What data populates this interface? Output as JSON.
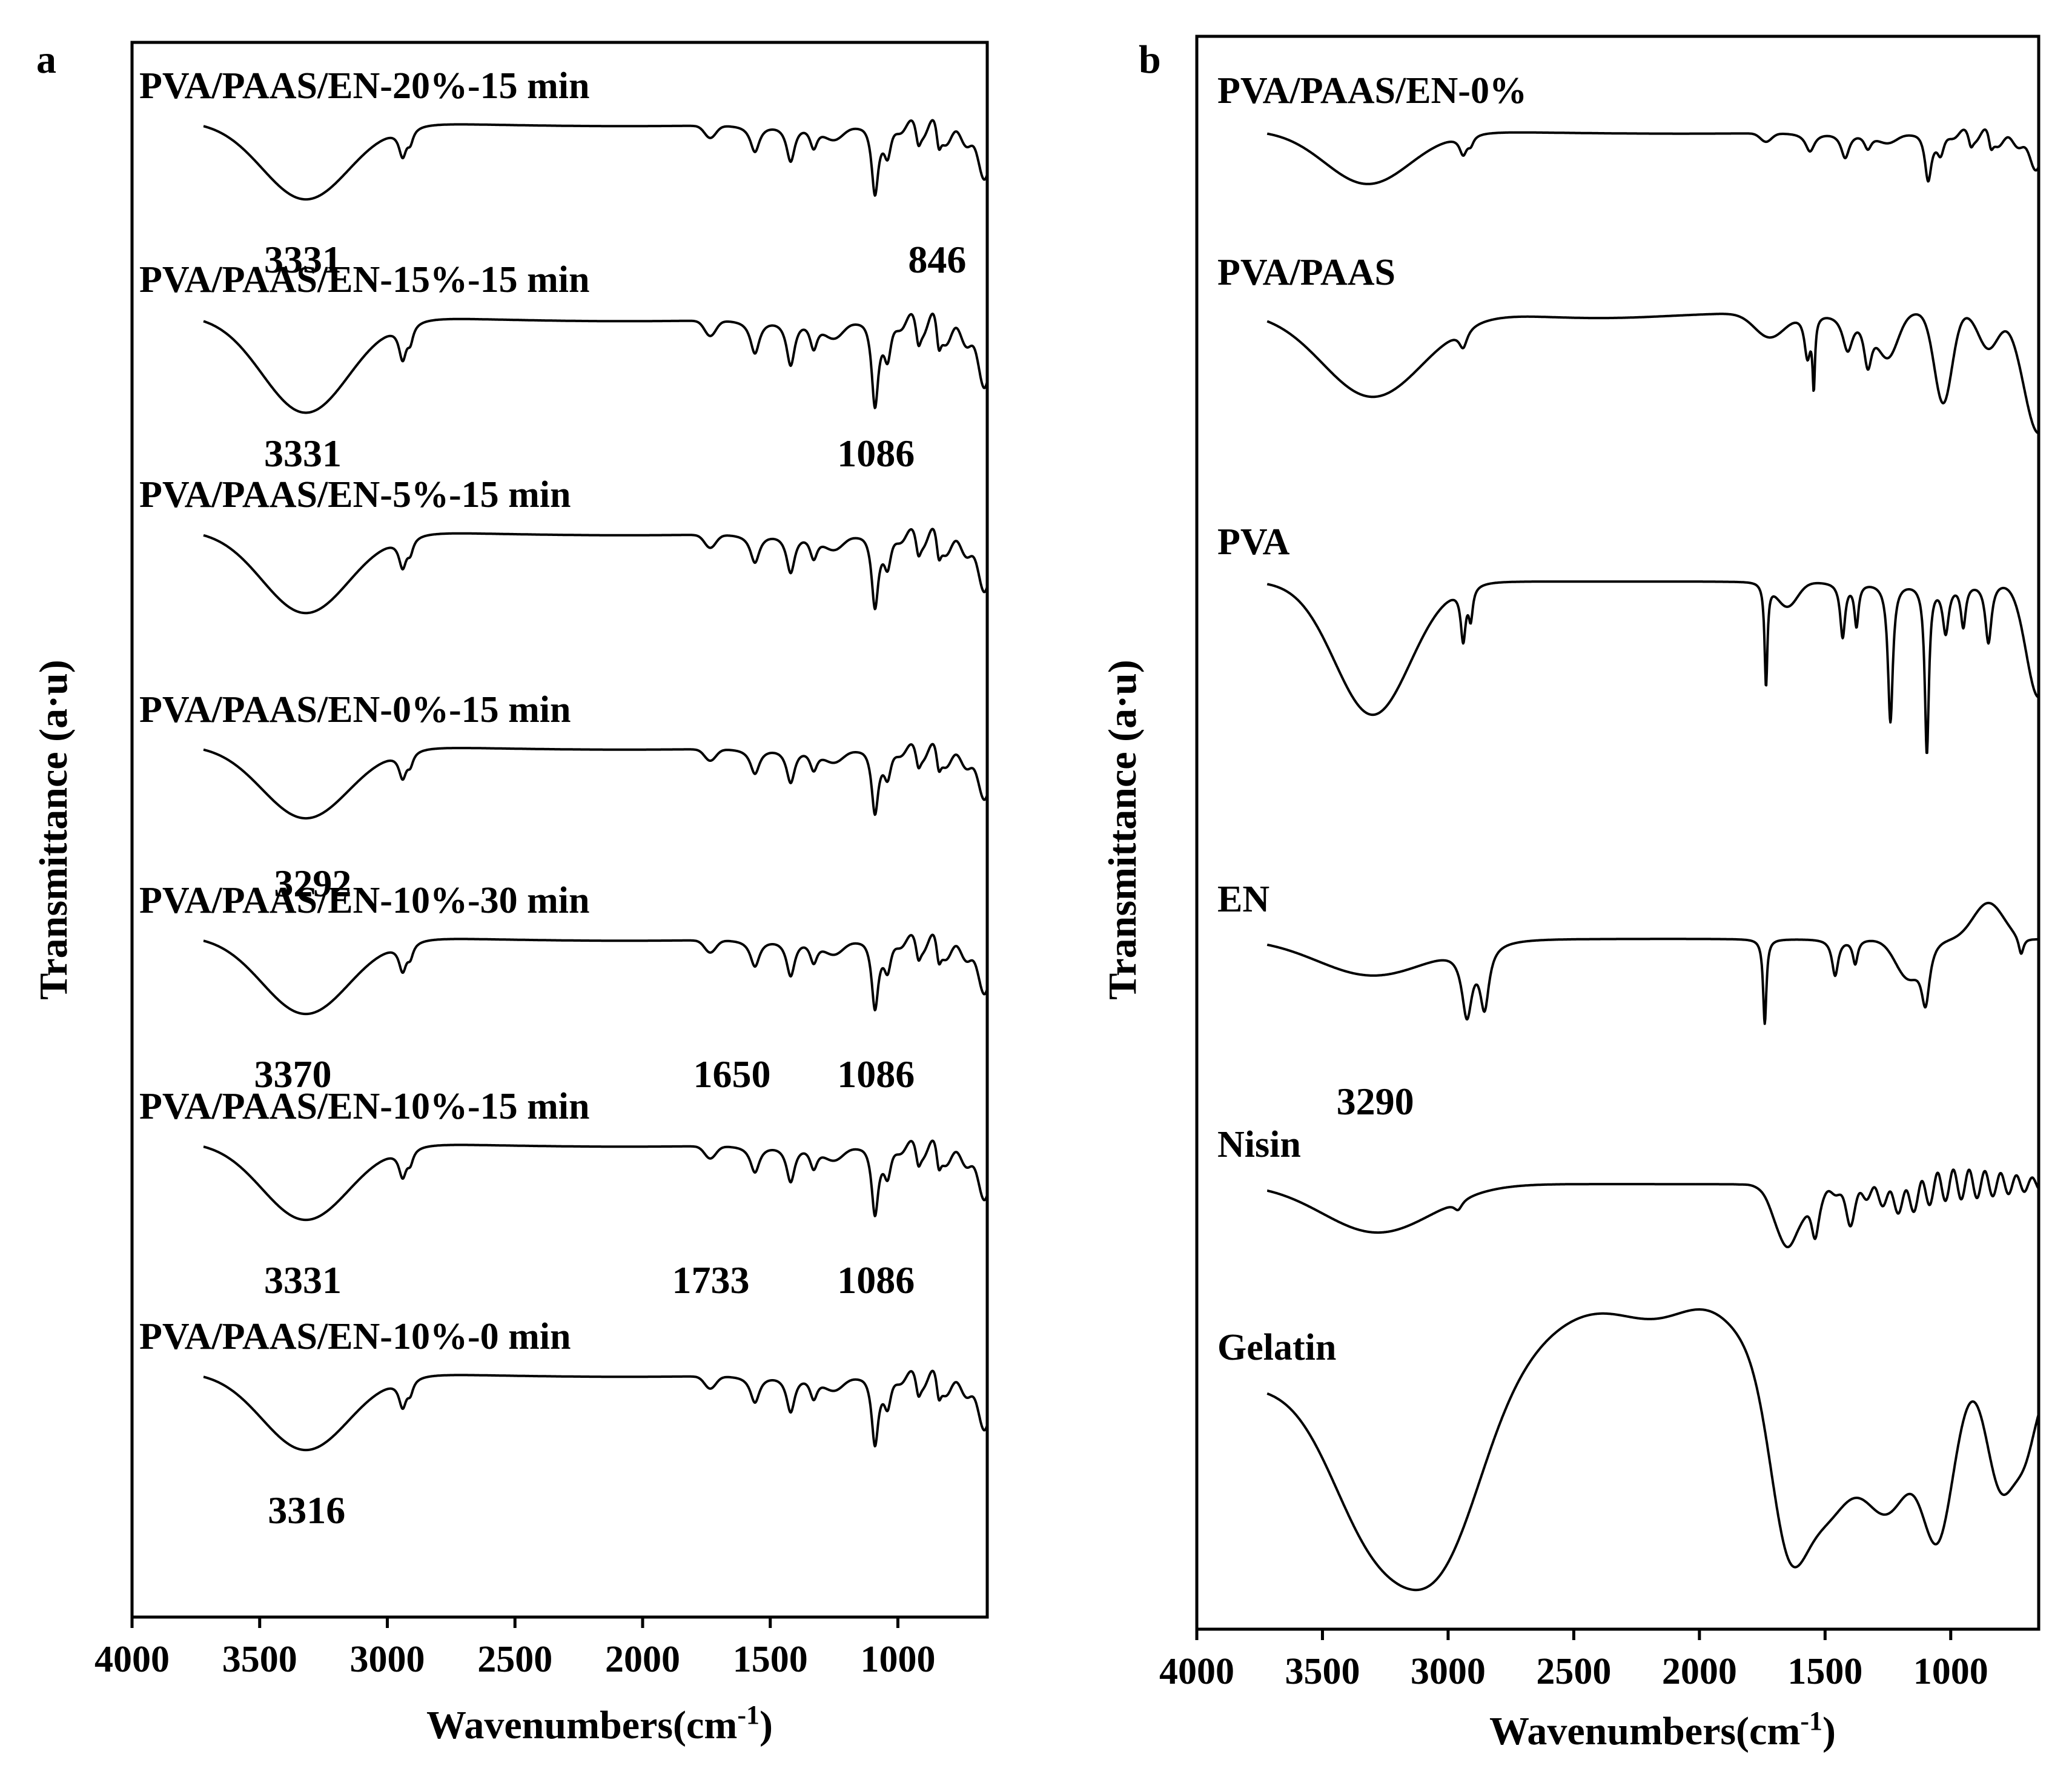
{
  "chart_data": [
    {
      "type": "line",
      "panel_label": "a",
      "xlabel": "Wavenumbers(cm",
      "xlabel_sup": "-1",
      "xlabel_close": ")",
      "ylabel": "Transmittance (a·u)",
      "xlim": [
        4000,
        650
      ],
      "x_reversed": true,
      "xticks": [
        {
          "value": 4000,
          "label": "4000"
        },
        {
          "value": 3500,
          "label": "3500"
        },
        {
          "value": 3000,
          "label": "3000"
        },
        {
          "value": 2500,
          "label": "2500"
        },
        {
          "value": 2000,
          "label": "2000"
        },
        {
          "value": 1500,
          "label": "1500"
        },
        {
          "value": 1000,
          "label": "1000"
        }
      ],
      "legend": "inline labels above each spectrum",
      "series": [
        {
          "name": "PVA/PAAS/EN-20%-15 min",
          "profile": "blend",
          "depth_scale": 0.8,
          "peak_labels": [
            {
              "x": 3331,
              "label": "3331"
            },
            {
              "x": 846,
              "label": "846"
            }
          ]
        },
        {
          "name": "PVA/PAAS/EN-15%-15 min",
          "profile": "blend",
          "depth_scale": 1.0,
          "peak_labels": [
            {
              "x": 3331,
              "label": "3331"
            },
            {
              "x": 1086,
              "label": "1086"
            }
          ]
        },
        {
          "name": "PVA/PAAS/EN-5%-15 min",
          "profile": "blend",
          "depth_scale": 0.85,
          "peak_labels": []
        },
        {
          "name": "PVA/PAAS/EN-0%-15 min",
          "profile": "blend",
          "depth_scale": 0.75,
          "peak_labels": [
            {
              "x": 3292,
              "label": "3292"
            }
          ]
        },
        {
          "name": "PVA/PAAS/EN-10%-30 min",
          "profile": "blend",
          "depth_scale": 0.8,
          "peak_labels": [
            {
              "x": 3370,
              "label": "3370"
            },
            {
              "x": 1650,
              "label": "1650"
            },
            {
              "x": 1086,
              "label": "1086"
            }
          ]
        },
        {
          "name": "PVA/PAAS/EN-10%-15 min",
          "profile": "blend",
          "depth_scale": 0.8,
          "peak_labels": [
            {
              "x": 3331,
              "label": "3331"
            },
            {
              "x": 1733,
              "label": "1733"
            },
            {
              "x": 1086,
              "label": "1086"
            }
          ]
        },
        {
          "name": "PVA/PAAS/EN-10%-0 min",
          "profile": "blend",
          "depth_scale": 0.8,
          "peak_labels": [
            {
              "x": 3316,
              "label": "3316"
            }
          ]
        }
      ]
    },
    {
      "type": "line",
      "panel_label": "b",
      "xlabel": "Wavenumbers(cm",
      "xlabel_sup": "-1",
      "xlabel_close": ")",
      "ylabel": "Transmittance (a·u)",
      "xlim": [
        4000,
        650
      ],
      "x_reversed": true,
      "xticks": [
        {
          "value": 4000,
          "label": "4000"
        },
        {
          "value": 3500,
          "label": "3500"
        },
        {
          "value": 3000,
          "label": "3000"
        },
        {
          "value": 2500,
          "label": "2500"
        },
        {
          "value": 2000,
          "label": "2000"
        },
        {
          "value": 1500,
          "label": "1500"
        },
        {
          "value": 1000,
          "label": "1000"
        }
      ],
      "legend": "inline labels above each spectrum",
      "series": [
        {
          "name": "PVA/PAAS/EN-0%",
          "profile": "blend",
          "depth_scale": 0.55,
          "peak_labels": []
        },
        {
          "name": "PVA/PAAS",
          "profile": "paas",
          "depth_scale": 1.0,
          "peak_labels": []
        },
        {
          "name": "PVA",
          "profile": "pva",
          "depth_scale": 1.0,
          "peak_labels": []
        },
        {
          "name": "EN",
          "profile": "en",
          "depth_scale": 1.0,
          "peak_labels": [
            {
              "x": 3290,
              "label": "3290"
            }
          ]
        },
        {
          "name": "Nisin",
          "profile": "nisin",
          "depth_scale": 1.0,
          "peak_labels": []
        },
        {
          "name": "Gelatin",
          "profile": "gelatin",
          "depth_scale": 1.0,
          "peak_labels": []
        }
      ]
    }
  ]
}
